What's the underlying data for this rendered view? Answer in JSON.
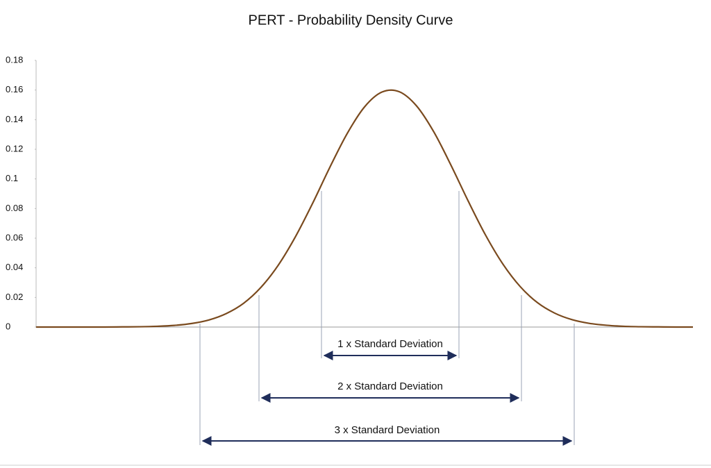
{
  "chart_data": {
    "type": "line",
    "title": "PERT - Probability Density Curve",
    "categories": [
      null,
      null,
      null,
      null,
      null,
      null,
      null,
      null,
      null,
      null,
      null,
      null,
      null,
      null,
      null,
      null,
      null,
      null,
      null,
      null,
      null,
      null,
      null,
      null,
      null,
      null,
      null,
      null,
      null,
      null,
      null,
      null,
      null,
      null,
      null,
      null,
      null,
      null,
      null
    ],
    "series": [
      {
        "color": "#7a4a1e",
        "values": [
          0,
          0,
          0,
          0,
          0,
          0.0001,
          0.0002,
          0.0005,
          0.0011,
          0.0024,
          0.0048,
          0.0091,
          0.016,
          0.0267,
          0.0416,
          0.0609,
          0.0836,
          0.108,
          0.1307,
          0.1486,
          0.1586,
          0.1589,
          0.1494,
          0.1319,
          0.1093,
          0.085,
          0.0621,
          0.0426,
          0.0274,
          0.0165,
          0.0094,
          0.005,
          0.0025,
          0.0012,
          0.0005,
          0.0002,
          0.0001,
          0,
          0
        ]
      }
    ],
    "ylim": [
      0,
      0.18
    ],
    "yticks": [
      0,
      0.02,
      0.04,
      0.06,
      0.08,
      0.1,
      0.12,
      0.14,
      0.16,
      0.18
    ],
    "annotations": [
      "1 x Standard Deviation",
      "2 x Standard Deviation",
      "3 x Standard Deviation"
    ]
  }
}
